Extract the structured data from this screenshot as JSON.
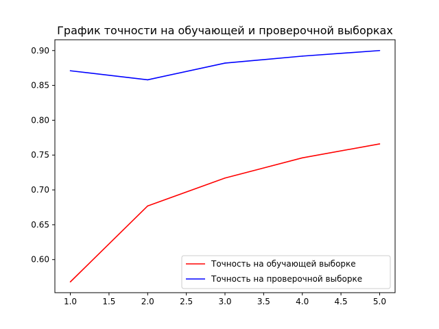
{
  "chart_data": {
    "type": "line",
    "title": "График точности на обучающей и проверочной выборках",
    "xlabel": "",
    "ylabel": "",
    "x": [
      1.0,
      2.0,
      3.0,
      4.0,
      5.0
    ],
    "xlim": [
      0.8,
      5.2
    ],
    "ylim": [
      0.5525,
      0.9155
    ],
    "xticks": [
      1.0,
      1.5,
      2.0,
      2.5,
      3.0,
      3.5,
      4.0,
      4.5,
      5.0
    ],
    "xtick_labels": [
      "1.0",
      "1.5",
      "2.0",
      "2.5",
      "3.0",
      "3.5",
      "4.0",
      "4.5",
      "5.0"
    ],
    "yticks": [
      0.6,
      0.65,
      0.7,
      0.75,
      0.8,
      0.85,
      0.9
    ],
    "ytick_labels": [
      "0.60",
      "0.65",
      "0.70",
      "0.75",
      "0.80",
      "0.85",
      "0.90"
    ],
    "grid": false,
    "legend_position": "bottom-right",
    "series": [
      {
        "name": "Точность на обучающей выборке",
        "color": "#ff0000",
        "values": [
          0.568,
          0.677,
          0.717,
          0.746,
          0.766
        ]
      },
      {
        "name": "Точность на проверочной выборке",
        "color": "#0000ff",
        "values": [
          0.871,
          0.858,
          0.882,
          0.892,
          0.9
        ]
      }
    ]
  }
}
